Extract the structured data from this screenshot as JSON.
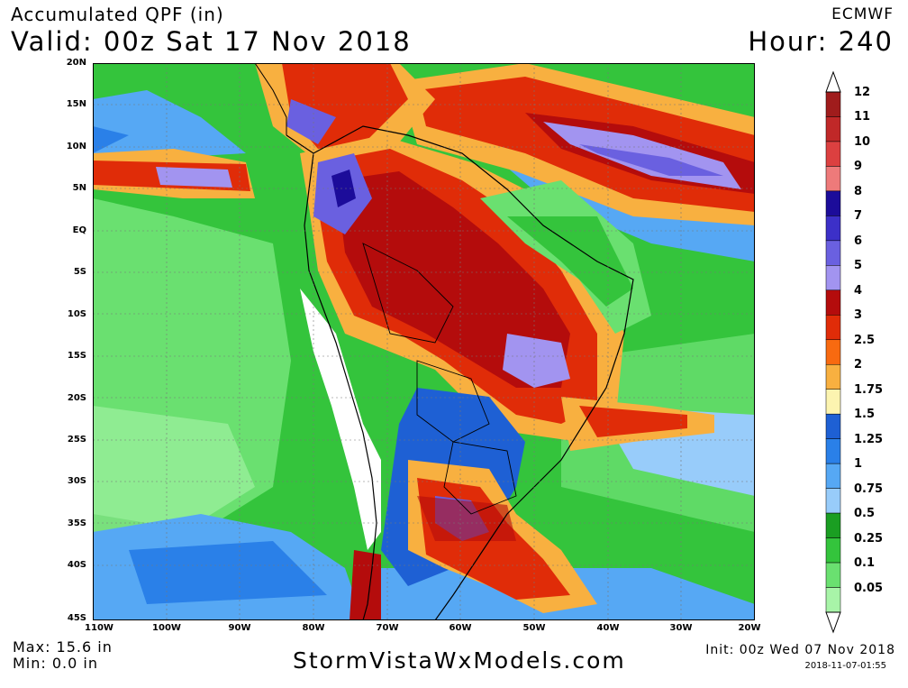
{
  "header": {
    "title": "Accumulated QPF (in)",
    "valid": "Valid: 00z Sat 17 Nov 2018",
    "model": "ECMWF",
    "hour": "Hour: 240"
  },
  "axes": {
    "latitudes": [
      "20N",
      "15N",
      "10N",
      "5N",
      "EQ",
      "5S",
      "10S",
      "15S",
      "20S",
      "25S",
      "30S",
      "35S",
      "40S",
      "45S"
    ],
    "longitudes": [
      "110W",
      "100W",
      "90W",
      "80W",
      "70W",
      "60W",
      "50W",
      "40W",
      "30W",
      "20W"
    ]
  },
  "legend": {
    "levels": [
      {
        "label": "12",
        "color": "#a01c1c"
      },
      {
        "label": "11",
        "color": "#c02828"
      },
      {
        "label": "10",
        "color": "#dc4040"
      },
      {
        "label": "9",
        "color": "#ee7a7a"
      },
      {
        "label": "8",
        "color": "#1c0c9a"
      },
      {
        "label": "7",
        "color": "#3c30c8"
      },
      {
        "label": "6",
        "color": "#6a60e0"
      },
      {
        "label": "5",
        "color": "#a294f0"
      },
      {
        "label": "4",
        "color": "#b40c0c"
      },
      {
        "label": "3",
        "color": "#e02c08"
      },
      {
        "label": "2.5",
        "color": "#f86a10"
      },
      {
        "label": "2",
        "color": "#f8b040"
      },
      {
        "label": "1.75",
        "color": "#fcf4b0"
      },
      {
        "label": "1.5",
        "color": "#1e60d4"
      },
      {
        "label": "1.25",
        "color": "#2a80e8"
      },
      {
        "label": "1",
        "color": "#56a8f4"
      },
      {
        "label": "0.75",
        "color": "#98ccfa"
      },
      {
        "label": "0.5",
        "color": "#1a9e22"
      },
      {
        "label": "0.25",
        "color": "#34c43c"
      },
      {
        "label": "0.1",
        "color": "#6ae070"
      },
      {
        "label": "0.05",
        "color": "#a8f4a8"
      }
    ]
  },
  "footer": {
    "max": "Max: 15.6 in",
    "min": "Min: 0.0 in",
    "site": "StormVistaWxModels.com",
    "init": "Init: 00z Wed 07 Nov 2018",
    "stamp": "2018-11-07-01:55"
  }
}
